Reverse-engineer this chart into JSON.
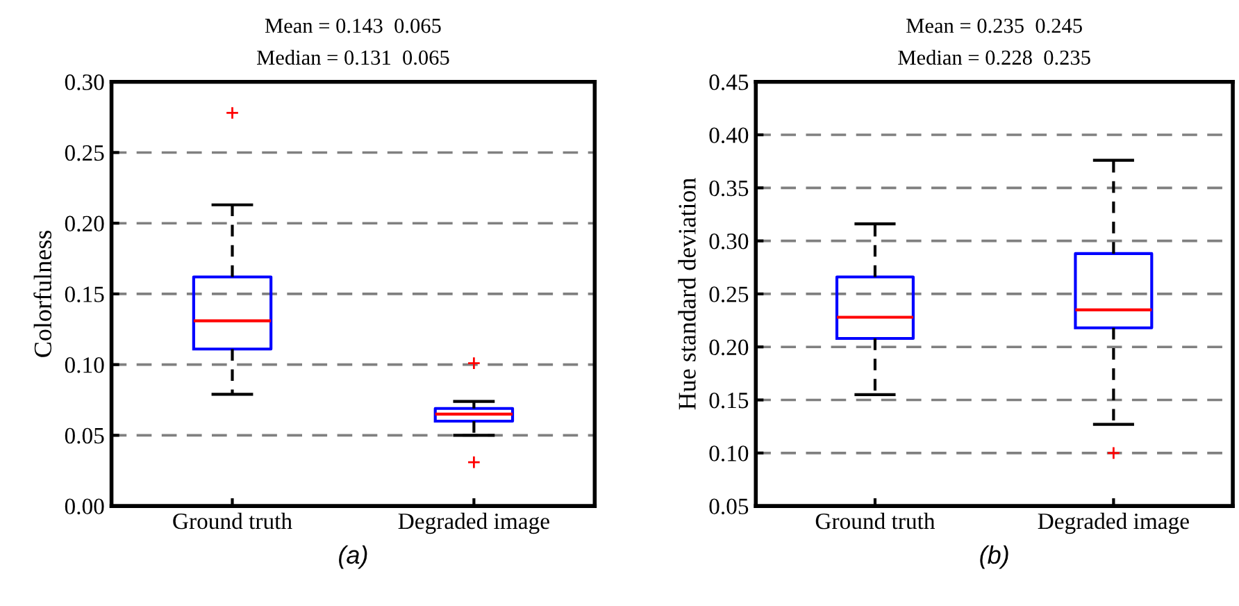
{
  "chart_data": [
    {
      "type": "box",
      "title": "Mean = 0.143  0.065",
      "subtitle": "Median = 0.131  0.065",
      "xlabel": "(a)",
      "ylabel": "Colorfulness",
      "categories": [
        "Ground truth",
        "Degraded image"
      ],
      "boxes": [
        {
          "low": 0.079,
          "q1": 0.111,
          "median": 0.131,
          "q3": 0.162,
          "high": 0.213,
          "outliers": [
            0.278
          ]
        },
        {
          "low": 0.05,
          "q1": 0.06,
          "median": 0.065,
          "q3": 0.069,
          "high": 0.074,
          "outliers": [
            0.101,
            0.031
          ]
        }
      ],
      "color": "#0000ff",
      "ylim": [
        0,
        0.3
      ],
      "yticks": [
        {
          "value": 0,
          "label": "0.00"
        },
        {
          "value": 0.05,
          "label": "0.05"
        },
        {
          "value": 0.1,
          "label": "0.10"
        },
        {
          "value": 0.15,
          "label": "0.15"
        },
        {
          "value": 0.2,
          "label": "0.20"
        },
        {
          "value": 0.25,
          "label": "0.25"
        },
        {
          "value": 0.3,
          "label": "0.30"
        }
      ],
      "grid": "y"
    },
    {
      "type": "box",
      "title": "Mean = 0.235  0.245",
      "subtitle": "Median = 0.228  0.235",
      "xlabel": "(b)",
      "ylabel": "Hue standard deviation",
      "categories": [
        "Ground truth",
        "Degraded image"
      ],
      "boxes": [
        {
          "low": 0.155,
          "q1": 0.208,
          "median": 0.228,
          "q3": 0.266,
          "high": 0.316
        },
        {
          "low": 0.127,
          "q1": 0.218,
          "median": 0.235,
          "q3": 0.288,
          "high": 0.376,
          "outliers": [
            0.1
          ]
        }
      ],
      "color": "#0000ff",
      "ylim": [
        0.05,
        0.45
      ],
      "yticks": [
        {
          "value": 0.05,
          "label": "0.05"
        },
        {
          "value": 0.1,
          "label": "0.10"
        },
        {
          "value": 0.15,
          "label": "0.15"
        },
        {
          "value": 0.2,
          "label": "0.20"
        },
        {
          "value": 0.25,
          "label": "0.25"
        },
        {
          "value": 0.3,
          "label": "0.30"
        },
        {
          "value": 0.35,
          "label": "0.35"
        },
        {
          "value": 0.4,
          "label": "0.40"
        },
        {
          "value": 0.45,
          "label": "0.45"
        }
      ],
      "grid": "y"
    }
  ]
}
